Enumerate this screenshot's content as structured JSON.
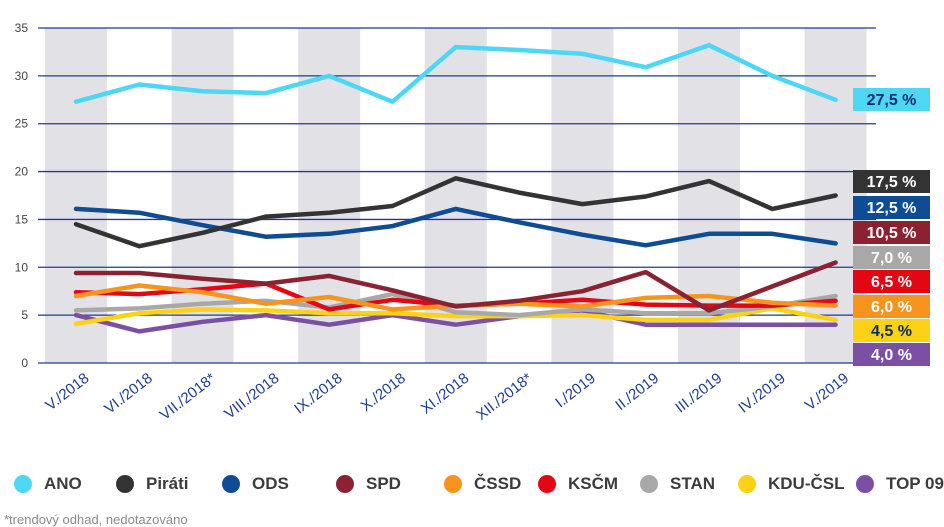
{
  "chart_data": {
    "type": "line",
    "categories": [
      "V./2018",
      "VI./2018",
      "VII./2018*",
      "VIII./2018",
      "IX./2018",
      "X./2018",
      "XI./2018",
      "XII./2018*",
      "I./2019",
      "II./2019",
      "III./2019",
      "IV./2019",
      "V./2019"
    ],
    "ylim": [
      0,
      35
    ],
    "yticks": [
      0,
      5,
      10,
      15,
      20,
      25,
      30,
      35
    ],
    "grid": true,
    "series": [
      {
        "name": "ANO",
        "color": "#4dd7f5",
        "values": [
          27.3,
          29.1,
          28.4,
          28.2,
          30.0,
          27.3,
          33.0,
          32.7,
          32.3,
          30.9,
          33.2,
          30.0,
          27.5
        ],
        "end_label": "27,5 %"
      },
      {
        "name": "Piráti",
        "color": "#333333",
        "values": [
          14.5,
          12.2,
          13.6,
          15.3,
          15.7,
          16.4,
          19.3,
          17.8,
          16.6,
          17.4,
          19.0,
          16.1,
          17.5
        ],
        "end_label": "17,5 %"
      },
      {
        "name": "ODS",
        "color": "#0e4c94",
        "values": [
          16.1,
          15.7,
          14.4,
          13.2,
          13.5,
          14.3,
          16.1,
          14.7,
          13.4,
          12.3,
          13.5,
          13.5,
          12.5
        ],
        "end_label": "12,5 %"
      },
      {
        "name": "SPD",
        "color": "#8b2232",
        "values": [
          9.4,
          9.4,
          8.8,
          8.3,
          9.1,
          7.6,
          5.9,
          6.5,
          7.5,
          9.5,
          5.5,
          8.0,
          10.5
        ],
        "end_label": "10,5 %"
      },
      {
        "name": "ČSSD",
        "color": "#f7941d",
        "values": [
          7.0,
          8.1,
          7.4,
          6.2,
          6.9,
          5.6,
          6.0,
          6.2,
          5.9,
          6.8,
          7.0,
          6.3,
          6.0
        ],
        "end_label": "6,0 %"
      },
      {
        "name": "KSČM",
        "color": "#e30613",
        "values": [
          7.4,
          7.2,
          7.7,
          8.3,
          5.6,
          6.6,
          6.0,
          6.2,
          6.6,
          6.1,
          6.0,
          6.0,
          6.5
        ],
        "end_label": "6,5 %"
      },
      {
        "name": "STAN",
        "color": "#a8a8a8",
        "values": [
          5.5,
          5.7,
          6.2,
          6.5,
          5.8,
          7.2,
          5.3,
          5.0,
          5.6,
          5.2,
          5.2,
          5.9,
          7.0
        ],
        "end_label": "7,0 %"
      },
      {
        "name": "KDU-ČSL",
        "color": "#fcd116",
        "values": [
          4.1,
          5.2,
          5.6,
          5.5,
          5.2,
          5.2,
          4.9,
          4.9,
          5.0,
          4.5,
          4.5,
          5.7,
          4.5
        ],
        "end_label": "4,5 %"
      },
      {
        "name": "TOP 09",
        "color": "#7b4fa3",
        "values": [
          5.0,
          3.3,
          4.3,
          5.0,
          4.0,
          5.0,
          4.0,
          4.9,
          5.5,
          4.0,
          4.0,
          4.0,
          4.0
        ],
        "end_label": "4,0 %"
      }
    ],
    "footnote": "*trendový odhad, nedotazováno"
  }
}
